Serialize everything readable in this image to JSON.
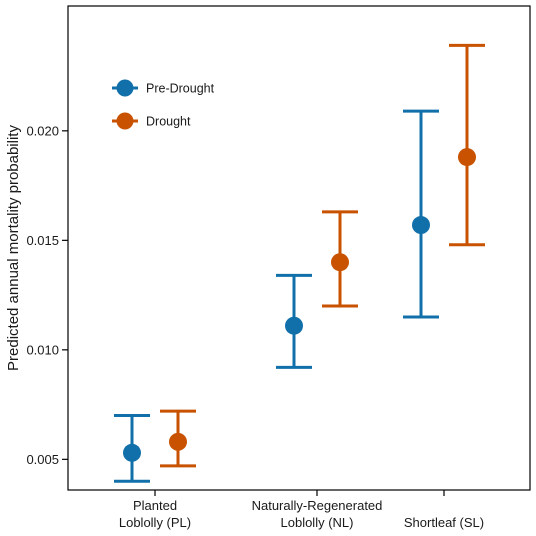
{
  "chart_data": {
    "type": "scatter",
    "subtype": "point-with-error-bars",
    "title": "",
    "xlabel": "",
    "ylabel": "Predicted annual mortality probability",
    "categories": [
      [
        "Planted",
        "Loblolly (PL)"
      ],
      [
        "Naturally-Regenerated",
        "Loblolly (NL)"
      ],
      [
        "Shortleaf (SL)"
      ]
    ],
    "ylim": [
      0.0036,
      0.0257
    ],
    "yticks": [
      0.005,
      0.01,
      0.015,
      0.02
    ],
    "ytick_labels": [
      "0.005",
      "0.010",
      "0.015",
      "0.020"
    ],
    "grid": false,
    "legend_position": "top-left",
    "series": [
      {
        "name": "Pre-Drought",
        "color": "#1170AA",
        "values": [
          0.0053,
          0.0111,
          0.0157
        ],
        "lower": [
          0.004,
          0.0092,
          0.0115
        ],
        "upper": [
          0.007,
          0.0134,
          0.0209
        ]
      },
      {
        "name": "Drought",
        "color": "#C85200",
        "values": [
          0.0058,
          0.014,
          0.0188
        ],
        "lower": [
          0.0047,
          0.012,
          0.0148
        ],
        "upper": [
          0.0072,
          0.0163,
          0.0239
        ]
      }
    ]
  }
}
